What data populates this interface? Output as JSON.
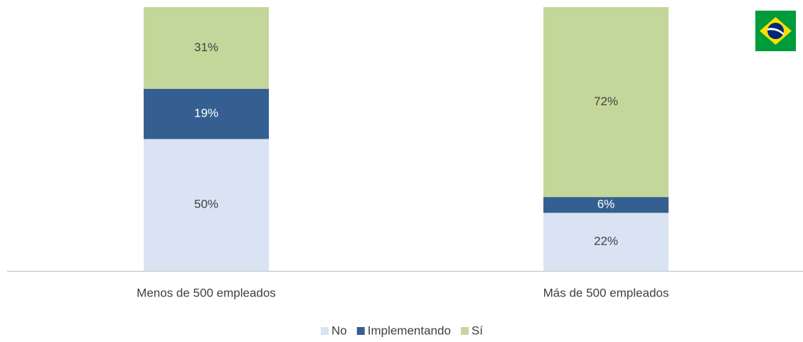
{
  "chart_data": {
    "type": "stacked-bar",
    "categories": [
      "Menos de 500 empleados",
      "Más de 500 empleados"
    ],
    "series": [
      {
        "name": "No",
        "color": "#dae3f3",
        "values": [
          50,
          22
        ],
        "value_labels": [
          "50%",
          "22%"
        ]
      },
      {
        "name": "Implementando",
        "color": "#355f91",
        "values": [
          19,
          6
        ],
        "value_labels": [
          "19%",
          "6%"
        ]
      },
      {
        "name": "Sí",
        "color": "#c4d79b",
        "values": [
          31,
          72
        ],
        "value_labels": [
          "31%",
          "72%"
        ]
      }
    ],
    "legend": "bottom"
  }
}
